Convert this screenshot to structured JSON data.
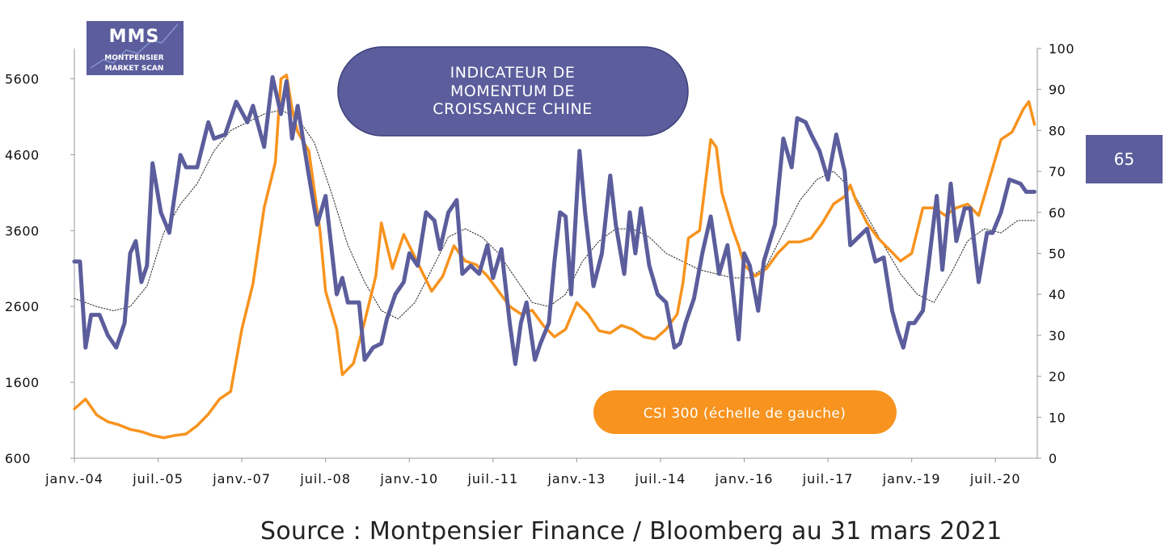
{
  "logo": {
    "line1": "MMS",
    "line2": "MONTPENSIER",
    "line3": "MARKET SCAN"
  },
  "page_number": "65",
  "source": "Source : Montpensier Finance / Bloomberg au 31 mars 2021",
  "colors": {
    "series_blue": "#5b5d9c",
    "series_orange": "#f7931e",
    "pill_blue": "#5b5d9c",
    "pill_orange": "#f7931e"
  },
  "chart_data": {
    "type": "line",
    "title_lines": [
      "INDICATEUR DE",
      "MOMENTUM DE",
      "CROISSANCE CHINE"
    ],
    "left_axis": {
      "ylim": [
        600,
        6000
      ],
      "ticks": [
        600,
        1600,
        2600,
        3600,
        4600,
        5600
      ]
    },
    "right_axis": {
      "ylim": [
        0,
        100
      ],
      "ticks": [
        0,
        10,
        20,
        30,
        40,
        50,
        60,
        70,
        80,
        90,
        100
      ]
    },
    "x_axis": {
      "range": [
        2004.0,
        2021.25
      ],
      "ticks": [
        {
          "label": "janv.-04",
          "x": 2004.0
        },
        {
          "label": "juil.-05",
          "x": 2005.5
        },
        {
          "label": "janv.-07",
          "x": 2007.0
        },
        {
          "label": "juil.-08",
          "x": 2008.5
        },
        {
          "label": "janv.-10",
          "x": 2010.0
        },
        {
          "label": "juil.-11",
          "x": 2011.5
        },
        {
          "label": "janv.-13",
          "x": 2013.0
        },
        {
          "label": "juil.-14",
          "x": 2014.5
        },
        {
          "label": "janv.-16",
          "x": 2016.0
        },
        {
          "label": "juil.-17",
          "x": 2017.5
        },
        {
          "label": "janv.-19",
          "x": 2019.0
        },
        {
          "label": "juil.-20",
          "x": 2020.5
        }
      ]
    },
    "series": [
      {
        "name": "CSI 300 (échelle de gauche)",
        "axis": "left",
        "color": "#f7931e",
        "points": [
          [
            2004.0,
            1250
          ],
          [
            2004.2,
            1380
          ],
          [
            2004.4,
            1170
          ],
          [
            2004.6,
            1080
          ],
          [
            2004.8,
            1040
          ],
          [
            2005.0,
            980
          ],
          [
            2005.2,
            950
          ],
          [
            2005.4,
            900
          ],
          [
            2005.6,
            870
          ],
          [
            2005.8,
            900
          ],
          [
            2006.0,
            920
          ],
          [
            2006.2,
            1030
          ],
          [
            2006.4,
            1180
          ],
          [
            2006.6,
            1380
          ],
          [
            2006.8,
            1480
          ],
          [
            2007.0,
            2300
          ],
          [
            2007.2,
            2900
          ],
          [
            2007.4,
            3900
          ],
          [
            2007.6,
            4500
          ],
          [
            2007.7,
            5600
          ],
          [
            2007.8,
            5650
          ],
          [
            2007.9,
            5200
          ],
          [
            2008.0,
            4900
          ],
          [
            2008.2,
            4650
          ],
          [
            2008.4,
            3600
          ],
          [
            2008.5,
            2800
          ],
          [
            2008.7,
            2300
          ],
          [
            2008.8,
            1700
          ],
          [
            2009.0,
            1850
          ],
          [
            2009.2,
            2400
          ],
          [
            2009.4,
            3000
          ],
          [
            2009.5,
            3700
          ],
          [
            2009.7,
            3100
          ],
          [
            2009.9,
            3550
          ],
          [
            2010.0,
            3400
          ],
          [
            2010.2,
            3100
          ],
          [
            2010.4,
            2800
          ],
          [
            2010.6,
            3000
          ],
          [
            2010.8,
            3400
          ],
          [
            2011.0,
            3200
          ],
          [
            2011.2,
            3150
          ],
          [
            2011.4,
            3000
          ],
          [
            2011.6,
            2800
          ],
          [
            2011.8,
            2600
          ],
          [
            2012.0,
            2500
          ],
          [
            2012.2,
            2550
          ],
          [
            2012.4,
            2350
          ],
          [
            2012.6,
            2200
          ],
          [
            2012.8,
            2300
          ],
          [
            2013.0,
            2650
          ],
          [
            2013.2,
            2500
          ],
          [
            2013.4,
            2280
          ],
          [
            2013.6,
            2250
          ],
          [
            2013.8,
            2350
          ],
          [
            2014.0,
            2300
          ],
          [
            2014.2,
            2200
          ],
          [
            2014.4,
            2170
          ],
          [
            2014.6,
            2300
          ],
          [
            2014.8,
            2500
          ],
          [
            2014.9,
            2900
          ],
          [
            2015.0,
            3500
          ],
          [
            2015.2,
            3600
          ],
          [
            2015.4,
            4800
          ],
          [
            2015.5,
            4700
          ],
          [
            2015.6,
            4100
          ],
          [
            2015.8,
            3600
          ],
          [
            2015.9,
            3400
          ],
          [
            2016.0,
            3150
          ],
          [
            2016.2,
            3000
          ],
          [
            2016.4,
            3100
          ],
          [
            2016.6,
            3300
          ],
          [
            2016.8,
            3450
          ],
          [
            2017.0,
            3450
          ],
          [
            2017.2,
            3500
          ],
          [
            2017.4,
            3700
          ],
          [
            2017.6,
            3950
          ],
          [
            2017.8,
            4050
          ],
          [
            2017.9,
            4200
          ],
          [
            2018.0,
            4000
          ],
          [
            2018.2,
            3700
          ],
          [
            2018.4,
            3500
          ],
          [
            2018.6,
            3350
          ],
          [
            2018.8,
            3200
          ],
          [
            2019.0,
            3300
          ],
          [
            2019.2,
            3900
          ],
          [
            2019.4,
            3900
          ],
          [
            2019.6,
            3800
          ],
          [
            2019.8,
            3900
          ],
          [
            2020.0,
            3950
          ],
          [
            2020.2,
            3800
          ],
          [
            2020.4,
            4300
          ],
          [
            2020.6,
            4800
          ],
          [
            2020.8,
            4900
          ],
          [
            2021.0,
            5200
          ],
          [
            2021.1,
            5300
          ],
          [
            2021.2,
            5000
          ]
        ]
      },
      {
        "name": "",
        "axis": "right",
        "color": "#5b5d9c",
        "points": [
          [
            2004.0,
            48
          ],
          [
            2004.1,
            48
          ],
          [
            2004.2,
            27
          ],
          [
            2004.3,
            35
          ],
          [
            2004.45,
            35
          ],
          [
            2004.6,
            30
          ],
          [
            2004.75,
            27
          ],
          [
            2004.9,
            33
          ],
          [
            2005.0,
            50
          ],
          [
            2005.1,
            53
          ],
          [
            2005.2,
            43
          ],
          [
            2005.3,
            47
          ],
          [
            2005.4,
            72
          ],
          [
            2005.55,
            60
          ],
          [
            2005.7,
            55
          ],
          [
            2005.9,
            74
          ],
          [
            2006.0,
            71
          ],
          [
            2006.2,
            71
          ],
          [
            2006.4,
            82
          ],
          [
            2006.5,
            78
          ],
          [
            2006.7,
            79
          ],
          [
            2006.9,
            87
          ],
          [
            2007.1,
            82
          ],
          [
            2007.2,
            86
          ],
          [
            2007.4,
            76
          ],
          [
            2007.55,
            93
          ],
          [
            2007.7,
            84
          ],
          [
            2007.8,
            92
          ],
          [
            2007.9,
            78
          ],
          [
            2008.0,
            86
          ],
          [
            2008.2,
            69
          ],
          [
            2008.35,
            57
          ],
          [
            2008.5,
            64
          ],
          [
            2008.7,
            40
          ],
          [
            2008.8,
            44
          ],
          [
            2008.9,
            38
          ],
          [
            2009.1,
            38
          ],
          [
            2009.2,
            24
          ],
          [
            2009.35,
            27
          ],
          [
            2009.5,
            28
          ],
          [
            2009.6,
            34
          ],
          [
            2009.75,
            40
          ],
          [
            2009.9,
            43
          ],
          [
            2010.0,
            50
          ],
          [
            2010.15,
            47
          ],
          [
            2010.3,
            60
          ],
          [
            2010.45,
            58
          ],
          [
            2010.55,
            51
          ],
          [
            2010.7,
            60
          ],
          [
            2010.85,
            63
          ],
          [
            2010.95,
            45
          ],
          [
            2011.1,
            47
          ],
          [
            2011.25,
            45
          ],
          [
            2011.4,
            52
          ],
          [
            2011.5,
            44
          ],
          [
            2011.65,
            51
          ],
          [
            2011.8,
            33
          ],
          [
            2011.9,
            23
          ],
          [
            2012.0,
            33
          ],
          [
            2012.1,
            38
          ],
          [
            2012.25,
            24
          ],
          [
            2012.35,
            28
          ],
          [
            2012.5,
            33
          ],
          [
            2012.6,
            48
          ],
          [
            2012.7,
            60
          ],
          [
            2012.8,
            59
          ],
          [
            2012.9,
            40
          ],
          [
            2013.05,
            75
          ],
          [
            2013.15,
            60
          ],
          [
            2013.3,
            42
          ],
          [
            2013.45,
            50
          ],
          [
            2013.6,
            69
          ],
          [
            2013.7,
            57
          ],
          [
            2013.85,
            45
          ],
          [
            2013.95,
            60
          ],
          [
            2014.05,
            50
          ],
          [
            2014.15,
            61
          ],
          [
            2014.3,
            47
          ],
          [
            2014.45,
            40
          ],
          [
            2014.6,
            38
          ],
          [
            2014.75,
            27
          ],
          [
            2014.85,
            28
          ],
          [
            2014.95,
            33
          ],
          [
            2015.1,
            39
          ],
          [
            2015.25,
            50
          ],
          [
            2015.4,
            59
          ],
          [
            2015.55,
            45
          ],
          [
            2015.7,
            52
          ],
          [
            2015.9,
            29
          ],
          [
            2016.0,
            50
          ],
          [
            2016.1,
            47
          ],
          [
            2016.25,
            36
          ],
          [
            2016.35,
            48
          ],
          [
            2016.55,
            57
          ],
          [
            2016.7,
            78
          ],
          [
            2016.85,
            71
          ],
          [
            2016.95,
            83
          ],
          [
            2017.1,
            82
          ],
          [
            2017.2,
            79
          ],
          [
            2017.35,
            75
          ],
          [
            2017.5,
            68
          ],
          [
            2017.65,
            79
          ],
          [
            2017.8,
            70
          ],
          [
            2017.9,
            52
          ],
          [
            2018.05,
            54
          ],
          [
            2018.2,
            56
          ],
          [
            2018.35,
            48
          ],
          [
            2018.5,
            49
          ],
          [
            2018.65,
            36
          ],
          [
            2018.75,
            31
          ],
          [
            2018.85,
            27
          ],
          [
            2018.95,
            33
          ],
          [
            2019.05,
            33
          ],
          [
            2019.2,
            36
          ],
          [
            2019.3,
            47
          ],
          [
            2019.45,
            64
          ],
          [
            2019.55,
            46
          ],
          [
            2019.7,
            67
          ],
          [
            2019.8,
            53
          ],
          [
            2019.95,
            61
          ],
          [
            2020.05,
            61
          ],
          [
            2020.2,
            43
          ],
          [
            2020.35,
            55
          ],
          [
            2020.45,
            55
          ],
          [
            2020.6,
            60
          ],
          [
            2020.75,
            68
          ],
          [
            2020.95,
            67
          ],
          [
            2021.05,
            65
          ],
          [
            2021.2,
            65
          ]
        ]
      },
      {
        "name": "",
        "axis": "right",
        "color": "#222222",
        "style": "dotted",
        "points": [
          [
            2004.0,
            39
          ],
          [
            2004.4,
            37
          ],
          [
            2004.7,
            36
          ],
          [
            2005.0,
            37
          ],
          [
            2005.3,
            42
          ],
          [
            2005.6,
            55
          ],
          [
            2005.9,
            62
          ],
          [
            2006.2,
            67
          ],
          [
            2006.5,
            75
          ],
          [
            2006.8,
            80
          ],
          [
            2007.1,
            82
          ],
          [
            2007.4,
            84
          ],
          [
            2007.7,
            85
          ],
          [
            2008.0,
            83
          ],
          [
            2008.3,
            77
          ],
          [
            2008.6,
            65
          ],
          [
            2008.9,
            52
          ],
          [
            2009.2,
            43
          ],
          [
            2009.5,
            36
          ],
          [
            2009.8,
            34
          ],
          [
            2010.1,
            38
          ],
          [
            2010.4,
            46
          ],
          [
            2010.7,
            54
          ],
          [
            2011.0,
            56
          ],
          [
            2011.3,
            54
          ],
          [
            2011.6,
            50
          ],
          [
            2011.9,
            44
          ],
          [
            2012.2,
            38
          ],
          [
            2012.5,
            37
          ],
          [
            2012.8,
            40
          ],
          [
            2013.1,
            48
          ],
          [
            2013.4,
            53
          ],
          [
            2013.7,
            56
          ],
          [
            2014.0,
            56
          ],
          [
            2014.3,
            54
          ],
          [
            2014.6,
            50
          ],
          [
            2014.9,
            48
          ],
          [
            2015.2,
            46
          ],
          [
            2015.5,
            45
          ],
          [
            2015.8,
            44
          ],
          [
            2016.1,
            44
          ],
          [
            2016.4,
            47
          ],
          [
            2016.7,
            55
          ],
          [
            2017.0,
            63
          ],
          [
            2017.3,
            68
          ],
          [
            2017.6,
            70
          ],
          [
            2017.9,
            66
          ],
          [
            2018.2,
            59
          ],
          [
            2018.5,
            52
          ],
          [
            2018.8,
            45
          ],
          [
            2019.1,
            40
          ],
          [
            2019.4,
            38
          ],
          [
            2019.7,
            45
          ],
          [
            2020.0,
            53
          ],
          [
            2020.3,
            56
          ],
          [
            2020.6,
            55
          ],
          [
            2020.9,
            58
          ],
          [
            2021.2,
            58
          ]
        ]
      }
    ],
    "legend": {
      "label": "CSI 300 (échelle de gauche)",
      "placement": "bottom-right"
    },
    "grid": false
  }
}
